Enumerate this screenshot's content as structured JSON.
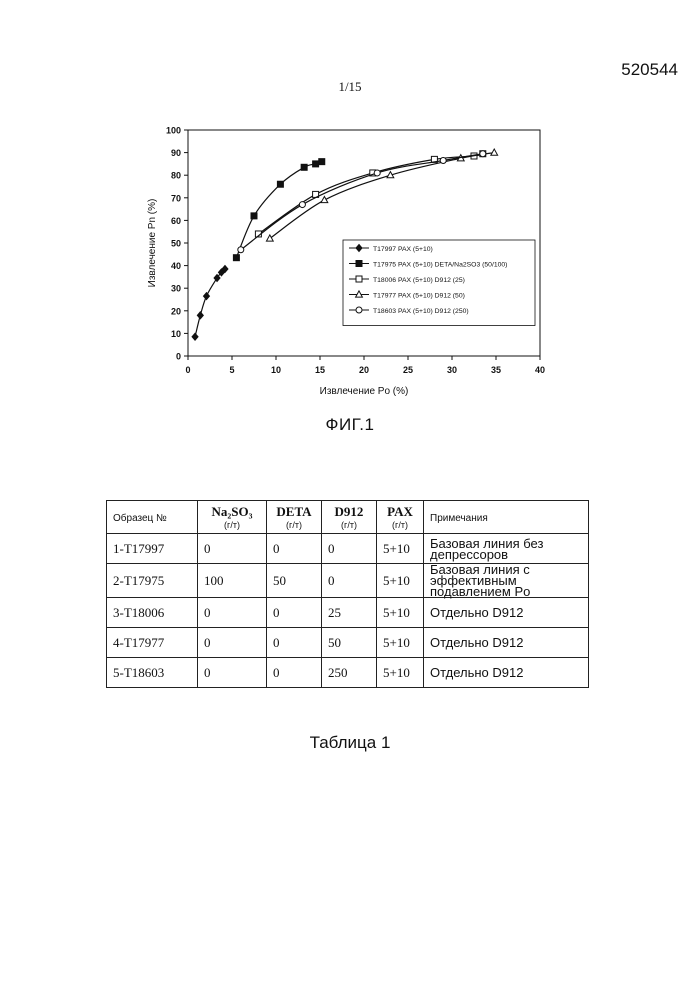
{
  "header": {
    "doc_number": "520544",
    "page_number": "1/15"
  },
  "figure": {
    "caption": "ФИГ.1"
  },
  "chart_data": {
    "type": "line",
    "xlabel": "Извлечение Po (%)",
    "ylabel": "Извлечение Pn (%)",
    "xlim": [
      0,
      40
    ],
    "ylim": [
      0,
      100
    ],
    "xticks": [
      0,
      5,
      10,
      15,
      20,
      25,
      30,
      35,
      40
    ],
    "yticks": [
      0,
      10,
      20,
      30,
      40,
      50,
      60,
      70,
      80,
      90,
      100
    ],
    "grid": false,
    "legend_position": "inside-right",
    "series": [
      {
        "name": "T17997 PAX (5+10)",
        "marker": "diamond-filled",
        "points": [
          [
            0.8,
            8.5
          ],
          [
            1.4,
            18
          ],
          [
            2.1,
            26.5
          ],
          [
            3.3,
            34.5
          ],
          [
            3.8,
            37
          ],
          [
            4.2,
            38.5
          ]
        ]
      },
      {
        "name": "T17975 PAX (5+10) DETA/Na2SO3 (50/100)",
        "marker": "square-filled",
        "points": [
          [
            5.5,
            43.5
          ],
          [
            7.5,
            62
          ],
          [
            10.5,
            76
          ],
          [
            13.2,
            83.5
          ],
          [
            14.5,
            85
          ],
          [
            15.2,
            86
          ]
        ]
      },
      {
        "name": "T18006 PAX (5+10) D912 (25)",
        "marker": "square-open",
        "points": [
          [
            8,
            54
          ],
          [
            14.5,
            71.5
          ],
          [
            21,
            81
          ],
          [
            28,
            87
          ],
          [
            32.5,
            88.5
          ],
          [
            33.5,
            89.5
          ]
        ]
      },
      {
        "name": "T17977 PAX (5+10) D912 (50)",
        "marker": "triangle-open",
        "points": [
          [
            9.3,
            52
          ],
          [
            15.5,
            69
          ],
          [
            23,
            80
          ],
          [
            31,
            87.5
          ],
          [
            34.8,
            90
          ]
        ]
      },
      {
        "name": "T18603 PAX (5+10) D912 (250)",
        "marker": "circle-open",
        "points": [
          [
            6,
            47
          ],
          [
            13,
            67
          ],
          [
            21.5,
            81
          ],
          [
            29,
            86.5
          ],
          [
            33.5,
            89.5
          ]
        ]
      }
    ]
  },
  "table": {
    "caption": "Таблица 1",
    "headers": [
      {
        "main": "Образец №",
        "unit": ""
      },
      {
        "main": "Na₂SO₃",
        "unit": "(г/т)"
      },
      {
        "main": "DETA",
        "unit": "(г/т)"
      },
      {
        "main": "D912",
        "unit": "(г/т)"
      },
      {
        "main": "PAX",
        "unit": "(г/т)"
      },
      {
        "main": "Примечания",
        "unit": ""
      }
    ],
    "rows": [
      {
        "sample": "1-T17997",
        "na2so3": "0",
        "deta": "0",
        "d912": "0",
        "pax": "5+10",
        "note": "Базовая линия без депрессоров"
      },
      {
        "sample": "2-T17975",
        "na2so3": "100",
        "deta": "50",
        "d912": "0",
        "pax": "5+10",
        "note": "Базовая линия с эффективным подавлением Po"
      },
      {
        "sample": "3-T18006",
        "na2so3": "0",
        "deta": "0",
        "d912": "25",
        "pax": "5+10",
        "note": "Отдельно D912"
      },
      {
        "sample": "4-T17977",
        "na2so3": "0",
        "deta": "0",
        "d912": "50",
        "pax": "5+10",
        "note": "Отдельно D912"
      },
      {
        "sample": "5-T18603",
        "na2so3": "0",
        "deta": "0",
        "d912": "250",
        "pax": "5+10",
        "note": "Отдельно D912"
      }
    ]
  }
}
